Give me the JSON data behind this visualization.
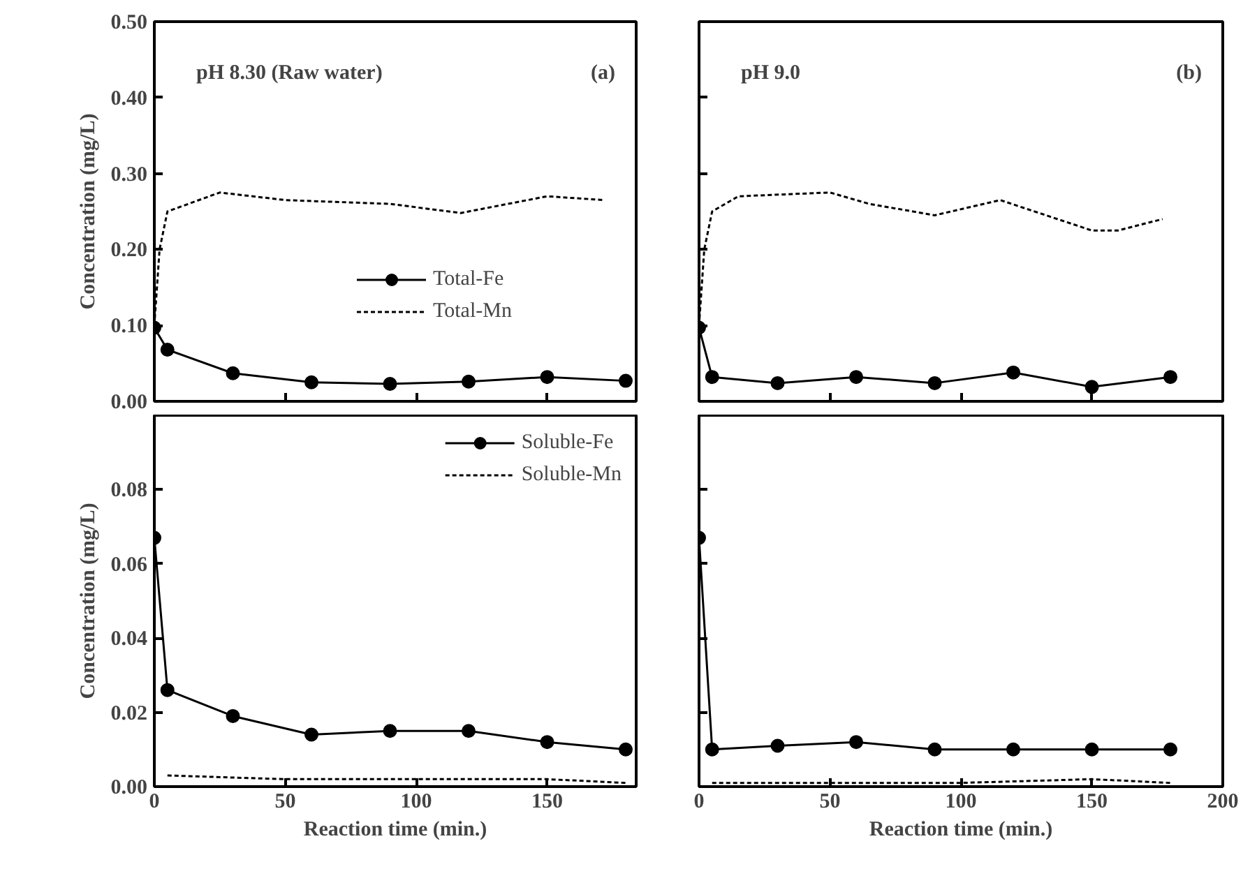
{
  "chart_data": [
    {
      "type": "line",
      "ylabel": "Concentration (mg/L)",
      "xlim": [
        0,
        184
      ],
      "xticks": [
        0,
        50,
        100,
        150
      ],
      "ylim": [
        0,
        0.5
      ],
      "yticks": [
        {
          "value": 0.0,
          "label": "0.00"
        },
        {
          "value": 0.1,
          "label": "0.10"
        },
        {
          "value": 0.2,
          "label": "0.20"
        },
        {
          "value": 0.3,
          "label": "0.30"
        },
        {
          "value": 0.4,
          "label": "0.40"
        },
        {
          "value": 0.5,
          "label": "0.50"
        }
      ],
      "tick_labels": "y",
      "grid": false,
      "legend": "right",
      "annotations": [
        "pH 8.30 (Raw water)",
        "(a)"
      ],
      "series": [
        {
          "name": "Total-Fe",
          "color": "#000000",
          "marker": "circle",
          "line_style": "solid",
          "x": [
            0,
            5,
            30,
            60,
            90,
            120,
            150,
            180
          ],
          "values": [
            0.097,
            0.068,
            0.037,
            0.025,
            0.023,
            0.026,
            0.032,
            0.027
          ]
        },
        {
          "name": "Total-Mn",
          "color": "#000000",
          "marker": "none",
          "line_style": "dashed",
          "x": [
            0,
            2,
            5,
            25,
            50,
            90,
            117,
            150,
            172
          ],
          "values": [
            0.1,
            0.2,
            0.25,
            0.275,
            0.265,
            0.26,
            0.248,
            0.27,
            0.265
          ]
        }
      ]
    },
    {
      "type": "line",
      "xlim": [
        0,
        200
      ],
      "xticks": [
        0,
        50,
        100,
        150,
        200
      ],
      "ylim": [
        0,
        0.5
      ],
      "yticks": [
        0.0,
        0.1,
        0.2,
        0.3,
        0.4,
        0.5
      ],
      "tick_labels": false,
      "grid": false,
      "legend": false,
      "annotations": [
        "pH 9.0",
        "(b)"
      ],
      "series": [
        {
          "color": "#000000",
          "marker": "circle",
          "line_style": "solid",
          "x": [
            0,
            5,
            30,
            60,
            90,
            120,
            150,
            180
          ],
          "values": [
            0.097,
            0.032,
            0.024,
            0.032,
            0.024,
            0.038,
            0.019,
            0.032
          ]
        },
        {
          "color": "#000000",
          "marker": "none",
          "line_style": "dashed",
          "x": [
            0,
            2,
            5,
            15,
            50,
            65,
            90,
            115,
            150,
            160,
            177
          ],
          "values": [
            0.1,
            0.2,
            0.25,
            0.27,
            0.275,
            0.26,
            0.245,
            0.265,
            0.225,
            0.225,
            0.24
          ]
        }
      ]
    },
    {
      "type": "line",
      "xlabel": "Reaction time (min.)",
      "ylabel": "Concentration (mg/L)",
      "xlim": [
        0,
        184
      ],
      "xticks": [
        0,
        50,
        100,
        150
      ],
      "ylim": [
        0,
        0.1
      ],
      "yticks": [
        {
          "value": 0.0,
          "label": "0.00"
        },
        {
          "value": 0.02,
          "label": "0.02"
        },
        {
          "value": 0.04,
          "label": "0.04"
        },
        {
          "value": 0.06,
          "label": "0.06"
        },
        {
          "value": 0.08,
          "label": "0.08"
        }
      ],
      "grid": false,
      "legend": "top right",
      "series": [
        {
          "name": "Soluble-Fe",
          "color": "#000000",
          "marker": "circle",
          "line_style": "solid",
          "x": [
            0,
            5,
            30,
            60,
            90,
            120,
            150,
            180
          ],
          "values": [
            0.067,
            0.026,
            0.019,
            0.014,
            0.015,
            0.015,
            0.012,
            0.01
          ]
        },
        {
          "name": "Soluble-Mn",
          "color": "#000000",
          "marker": "none",
          "line_style": "dashed",
          "x": [
            5,
            50,
            100,
            150,
            180
          ],
          "values": [
            0.003,
            0.002,
            0.002,
            0.002,
            0.001
          ]
        }
      ]
    },
    {
      "type": "line",
      "xlabel": "Reaction time (min.)",
      "xlim": [
        0,
        200
      ],
      "xticks": [
        0,
        50,
        100,
        150,
        200
      ],
      "ylim": [
        0,
        0.1
      ],
      "yticks": [
        0.0,
        0.02,
        0.04,
        0.06,
        0.08
      ],
      "tick_labels": "x",
      "grid": false,
      "legend": false,
      "series": [
        {
          "color": "#000000",
          "marker": "circle",
          "line_style": "solid",
          "x": [
            0,
            5,
            30,
            60,
            90,
            120,
            150,
            180
          ],
          "values": [
            0.067,
            0.01,
            0.011,
            0.012,
            0.01,
            0.01,
            0.01,
            0.01
          ]
        },
        {
          "color": "#000000",
          "marker": "none",
          "line_style": "dashed",
          "x": [
            5,
            50,
            100,
            150,
            180
          ],
          "values": [
            0.001,
            0.001,
            0.001,
            0.002,
            0.001
          ]
        }
      ]
    }
  ]
}
